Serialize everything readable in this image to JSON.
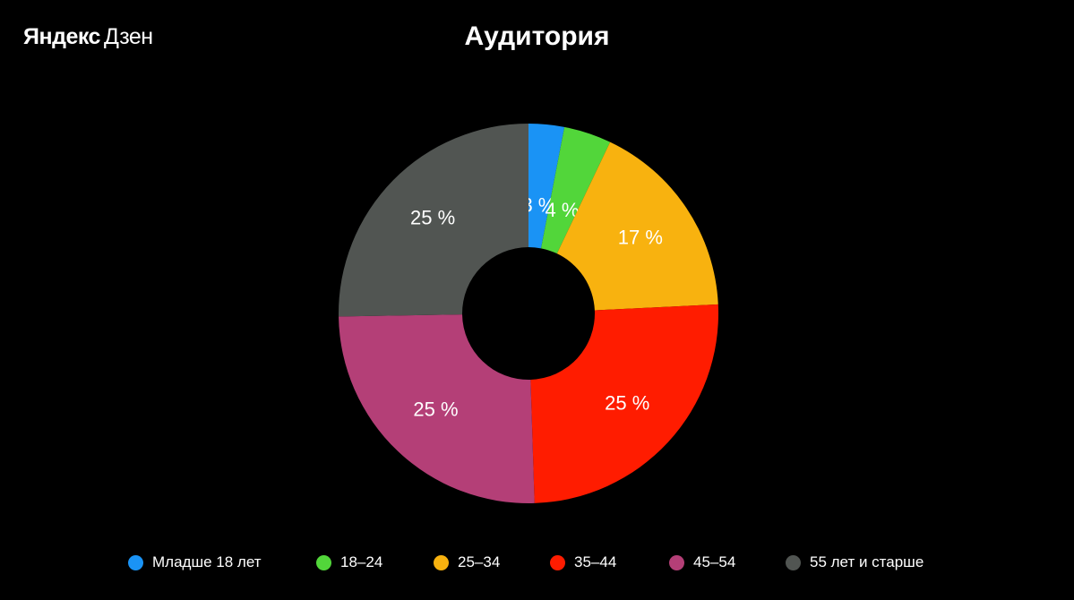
{
  "logo": {
    "brand": "Яндекс",
    "product": "Дзен"
  },
  "chart_data": {
    "type": "pie",
    "variant": "donut",
    "title": "Аудитория",
    "categories": [
      "Младше 18 лет",
      "18–24",
      "25–34",
      "35–44",
      "45–54",
      "55 лет и старше"
    ],
    "values": [
      3,
      4,
      17,
      25,
      25,
      25
    ],
    "labels": [
      "3 %",
      "4 %",
      "17 %",
      "25 %",
      "25 %",
      "25 %"
    ],
    "colors": [
      "#1a93f5",
      "#52d63a",
      "#f8b20f",
      "#ff1c00",
      "#b43f77",
      "#515552"
    ],
    "legend_position": "bottom"
  }
}
